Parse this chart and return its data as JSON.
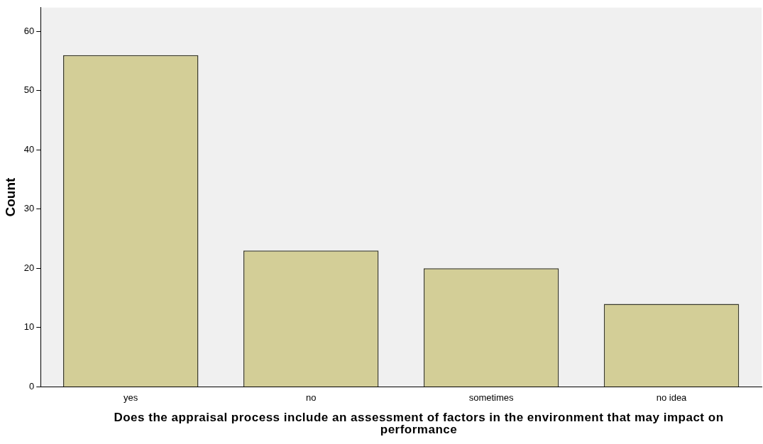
{
  "chart_data": {
    "type": "bar",
    "xlabel": "Does the appraisal process include an assessment of factors in the environment that may impact on performance",
    "ylabel": "Count",
    "categories": [
      "yes",
      "no",
      "sometimes",
      "no idea"
    ],
    "values": [
      56,
      23,
      20,
      14
    ],
    "color": "#d3ce97",
    "ylim": [
      0,
      64
    ],
    "yticks": [
      0,
      10,
      20,
      30,
      40,
      50,
      60
    ],
    "grid": false,
    "legend": false
  }
}
